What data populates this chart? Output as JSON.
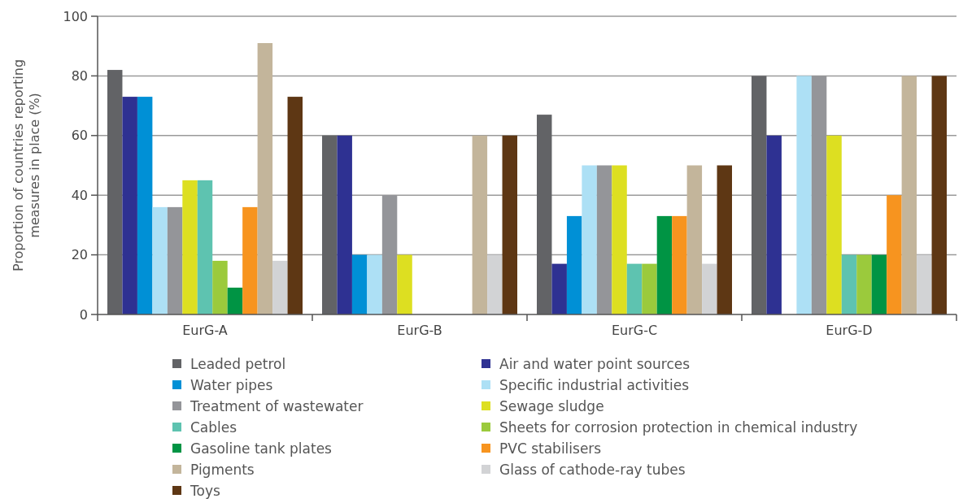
{
  "chart_data": {
    "type": "bar",
    "ylabel": "Proportion of countries reporting measures in place (%)",
    "categories": [
      "EurG-A",
      "EurG-B",
      "EurG-C",
      "EurG-D"
    ],
    "ylim": [
      0,
      100
    ],
    "yticks": [
      0,
      20,
      40,
      60,
      80,
      100
    ],
    "grid": "y",
    "legend": "bottom",
    "series": [
      {
        "name": "Leaded petrol",
        "color": "#626366",
        "values": [
          82,
          60,
          67,
          80
        ]
      },
      {
        "name": "Air and water point sources",
        "color": "#2e3192",
        "values": [
          73,
          60,
          17,
          60
        ]
      },
      {
        "name": "Water pipes",
        "color": "#0090d6",
        "values": [
          73,
          20,
          33,
          0
        ]
      },
      {
        "name": "Specific industrial activities",
        "color": "#ade0f5",
        "values": [
          36,
          20,
          50,
          80
        ]
      },
      {
        "name": "Treatment of wastewater",
        "color": "#949599",
        "values": [
          36,
          40,
          50,
          80
        ]
      },
      {
        "name": "Sewage sludge",
        "color": "#dddf21",
        "values": [
          45,
          20,
          50,
          60
        ]
      },
      {
        "name": "Cables",
        "color": "#5ec3b0",
        "values": [
          45,
          0,
          17,
          20
        ]
      },
      {
        "name": "Sheets for corrosion protection in chemical industry",
        "color": "#9bca3c",
        "values": [
          18,
          0,
          17,
          20
        ]
      },
      {
        "name": "Gasoline tank plates",
        "color": "#009444",
        "values": [
          9,
          0,
          33,
          20
        ]
      },
      {
        "name": "PVC stabilisers",
        "color": "#f7941f",
        "values": [
          36,
          0,
          33,
          40
        ]
      },
      {
        "name": "Pigments",
        "color": "#c3b59b",
        "values": [
          91,
          60,
          50,
          80
        ]
      },
      {
        "name": "Glass of cathode-ray tubes",
        "color": "#d2d3d5",
        "values": [
          18,
          20,
          17,
          20
        ]
      },
      {
        "name": "Toys",
        "color": "#5e3714",
        "values": [
          73,
          60,
          50,
          80
        ]
      }
    ]
  }
}
